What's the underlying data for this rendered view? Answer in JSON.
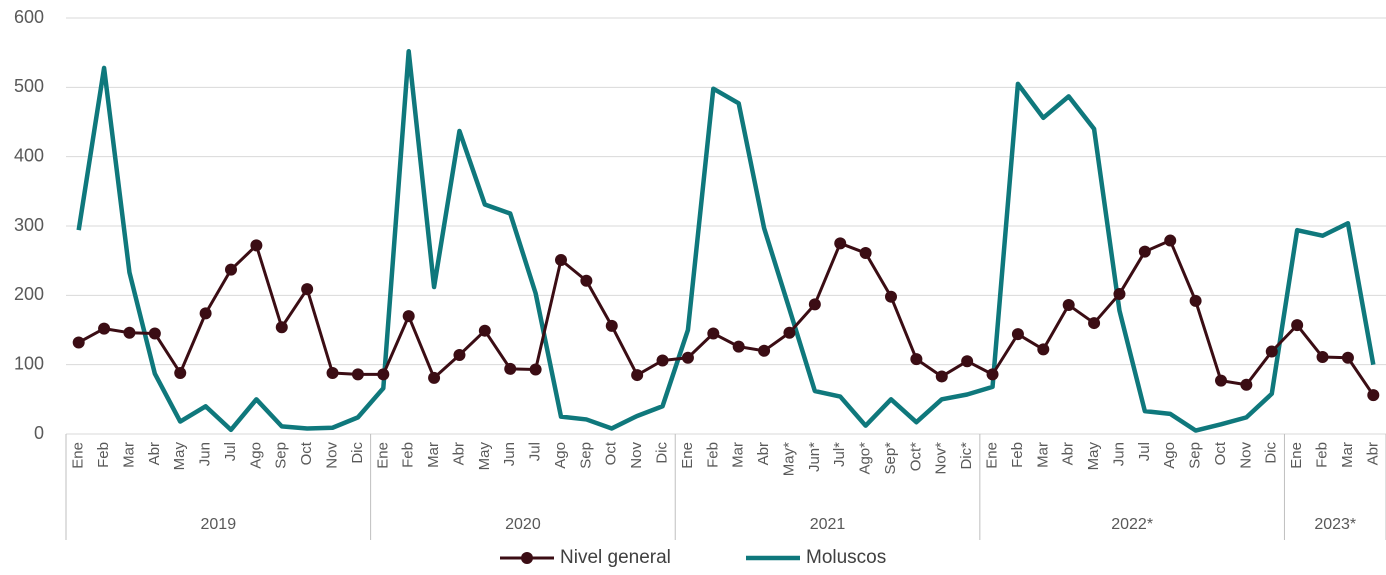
{
  "chart_data": {
    "type": "line",
    "categories": [
      "Ene",
      "Feb",
      "Mar",
      "Abr",
      "May",
      "Jun",
      "Jul",
      "Ago",
      "Sep",
      "Oct",
      "Nov",
      "Dic",
      "Ene",
      "Feb",
      "Mar",
      "Abr",
      "May",
      "Jun",
      "Jul",
      "Ago",
      "Sep",
      "Oct",
      "Nov",
      "Dic",
      "Ene",
      "Feb",
      "Mar",
      "Abr",
      "May*",
      "Jun*",
      "Jul*",
      "Ago*",
      "Sep*",
      "Oct*",
      "Nov*",
      "Dic*",
      "Ene",
      "Feb",
      "Mar",
      "Abr",
      "May",
      "Jun",
      "Jul",
      "Ago",
      "Sep",
      "Oct",
      "Nov",
      "Dic",
      "Ene",
      "Feb",
      "Mar",
      "Abr"
    ],
    "groups": [
      {
        "label": "2019",
        "count": 12
      },
      {
        "label": "2020",
        "count": 12
      },
      {
        "label": "2021",
        "count": 12
      },
      {
        "label": "2022*",
        "count": 12
      },
      {
        "label": "2023*",
        "count": 4
      }
    ],
    "series": [
      {
        "name": "Nivel general",
        "color": "#3b0d14",
        "markers": true,
        "values": [
          132,
          152,
          146,
          145,
          88,
          174,
          237,
          272,
          154,
          209,
          88,
          86,
          86,
          170,
          81,
          114,
          149,
          94,
          93,
          251,
          221,
          156,
          85,
          106,
          110,
          145,
          126,
          120,
          146,
          187,
          275,
          261,
          198,
          108,
          83,
          105,
          86,
          144,
          122,
          186,
          160,
          202,
          263,
          279,
          192,
          77,
          71,
          119,
          157,
          111,
          110,
          56
        ]
      },
      {
        "name": "Moluscos",
        "color": "#0f787c",
        "markers": false,
        "values": [
          294,
          528,
          233,
          87,
          18,
          40,
          6,
          50,
          11,
          8,
          9,
          24,
          66,
          552,
          212,
          437,
          331,
          318,
          203,
          25,
          21,
          8,
          26,
          40,
          150,
          498,
          477,
          297,
          180,
          62,
          54,
          12,
          50,
          17,
          50,
          57,
          68,
          505,
          456,
          487,
          440,
          178,
          33,
          29,
          5,
          14,
          24,
          58,
          294,
          286,
          304,
          100
        ]
      }
    ],
    "ylim": [
      0,
      600
    ],
    "yticks": [
      0,
      100,
      200,
      300,
      400,
      500,
      600
    ],
    "grid": true,
    "legend": "bottom"
  }
}
